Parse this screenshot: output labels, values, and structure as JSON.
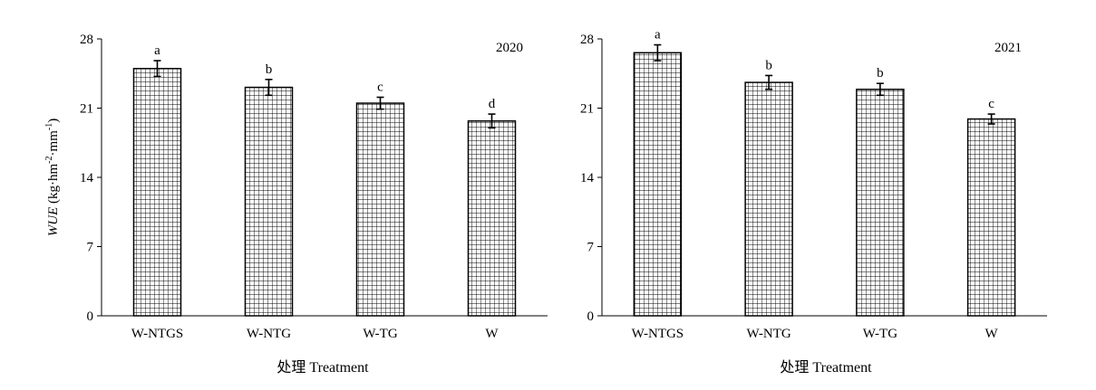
{
  "chart_data": [
    {
      "type": "bar",
      "title": "2020",
      "categories": [
        "W-NTGS",
        "W-NTG",
        "W-TG",
        "W"
      ],
      "values": [
        25.0,
        23.1,
        21.5,
        19.7
      ],
      "errors": [
        0.8,
        0.8,
        0.6,
        0.7
      ],
      "letters": [
        "a",
        "b",
        "c",
        "d"
      ],
      "ylim": [
        0,
        28
      ],
      "yticks": [
        0,
        7,
        14,
        21,
        28
      ],
      "xlabel": "处理 Treatment",
      "ylabel": {
        "italic": "WUE",
        "pre": " (kg·hm",
        "sup1": "-2",
        "mid": "·mm",
        "sup2": "-1",
        "post": ")"
      },
      "grid": false,
      "legend": "none"
    },
    {
      "type": "bar",
      "title": "2021",
      "categories": [
        "W-NTGS",
        "W-NTG",
        "W-TG",
        "W"
      ],
      "values": [
        26.6,
        23.6,
        22.9,
        19.9
      ],
      "errors": [
        0.8,
        0.7,
        0.6,
        0.5
      ],
      "letters": [
        "a",
        "b",
        "b",
        "c"
      ],
      "ylim": [
        0,
        28
      ],
      "yticks": [
        0,
        7,
        14,
        21,
        28
      ],
      "xlabel": "处理 Treatment",
      "grid": false,
      "legend": "none"
    }
  ],
  "style": {
    "bar_fill": "#ffffff",
    "bar_pattern_color": "#000000",
    "axis_color": "#000000"
  }
}
